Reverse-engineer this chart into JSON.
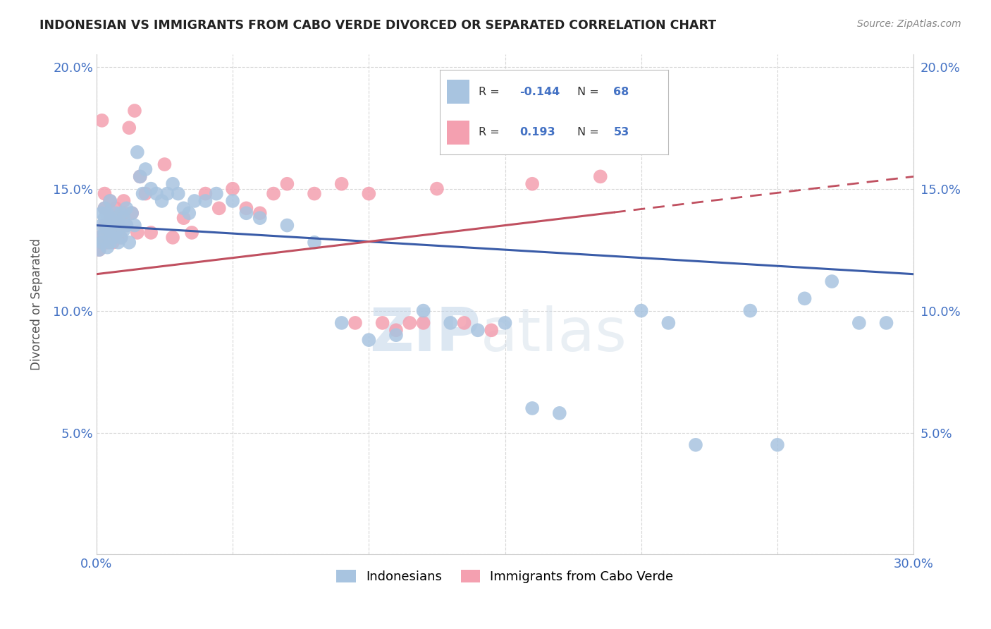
{
  "title": "INDONESIAN VS IMMIGRANTS FROM CABO VERDE DIVORCED OR SEPARATED CORRELATION CHART",
  "source": "Source: ZipAtlas.com",
  "ylabel": "Divorced or Separated",
  "legend_labels": [
    "Indonesians",
    "Immigrants from Cabo Verde"
  ],
  "xlim": [
    0.0,
    0.3
  ],
  "ylim": [
    0.0,
    0.205
  ],
  "xticks": [
    0.0,
    0.05,
    0.1,
    0.15,
    0.2,
    0.25,
    0.3
  ],
  "yticks": [
    0.0,
    0.05,
    0.1,
    0.15,
    0.2
  ],
  "xticklabels": [
    "0.0%",
    "",
    "",
    "",
    "",
    "",
    "30.0%"
  ],
  "yticklabels": [
    "",
    "5.0%",
    "10.0%",
    "15.0%",
    "20.0%"
  ],
  "blue_color": "#a8c4e0",
  "pink_color": "#f4a0b0",
  "blue_line_color": "#3a5ca8",
  "pink_line_color": "#c05060",
  "blue_r": "-0.144",
  "blue_n": "68",
  "pink_r": "0.193",
  "pink_n": "53",
  "watermark_zip": "ZIP",
  "watermark_atlas": "atlas",
  "blue_line_start_y": 0.135,
  "blue_line_end_y": 0.115,
  "pink_line_start_y": 0.115,
  "pink_line_end_y": 0.155,
  "indonesian_x": [
    0.001,
    0.001,
    0.002,
    0.002,
    0.002,
    0.003,
    0.003,
    0.003,
    0.004,
    0.004,
    0.004,
    0.005,
    0.005,
    0.005,
    0.005,
    0.006,
    0.006,
    0.007,
    0.007,
    0.008,
    0.008,
    0.009,
    0.009,
    0.01,
    0.01,
    0.011,
    0.011,
    0.012,
    0.013,
    0.014,
    0.015,
    0.016,
    0.017,
    0.018,
    0.02,
    0.022,
    0.024,
    0.026,
    0.028,
    0.03,
    0.032,
    0.034,
    0.036,
    0.04,
    0.044,
    0.05,
    0.055,
    0.06,
    0.07,
    0.08,
    0.09,
    0.1,
    0.11,
    0.12,
    0.13,
    0.14,
    0.15,
    0.16,
    0.17,
    0.2,
    0.21,
    0.22,
    0.24,
    0.25,
    0.26,
    0.27,
    0.28,
    0.29
  ],
  "indonesian_y": [
    0.125,
    0.13,
    0.128,
    0.135,
    0.14,
    0.132,
    0.138,
    0.142,
    0.126,
    0.134,
    0.14,
    0.128,
    0.133,
    0.138,
    0.145,
    0.13,
    0.136,
    0.132,
    0.14,
    0.128,
    0.136,
    0.13,
    0.14,
    0.133,
    0.138,
    0.142,
    0.135,
    0.128,
    0.14,
    0.135,
    0.165,
    0.155,
    0.148,
    0.158,
    0.15,
    0.148,
    0.145,
    0.148,
    0.152,
    0.148,
    0.142,
    0.14,
    0.145,
    0.145,
    0.148,
    0.145,
    0.14,
    0.138,
    0.135,
    0.128,
    0.095,
    0.088,
    0.09,
    0.1,
    0.095,
    0.092,
    0.095,
    0.06,
    0.058,
    0.1,
    0.095,
    0.045,
    0.1,
    0.045,
    0.105,
    0.112,
    0.095,
    0.095
  ],
  "caboverde_x": [
    0.001,
    0.001,
    0.002,
    0.002,
    0.003,
    0.003,
    0.003,
    0.004,
    0.004,
    0.005,
    0.005,
    0.005,
    0.006,
    0.006,
    0.007,
    0.007,
    0.008,
    0.008,
    0.009,
    0.01,
    0.01,
    0.011,
    0.012,
    0.013,
    0.014,
    0.015,
    0.016,
    0.018,
    0.02,
    0.025,
    0.028,
    0.032,
    0.035,
    0.04,
    0.045,
    0.05,
    0.055,
    0.06,
    0.065,
    0.07,
    0.08,
    0.09,
    0.095,
    0.1,
    0.105,
    0.11,
    0.115,
    0.12,
    0.125,
    0.135,
    0.145,
    0.16,
    0.185
  ],
  "caboverde_y": [
    0.125,
    0.13,
    0.128,
    0.178,
    0.135,
    0.142,
    0.148,
    0.128,
    0.133,
    0.13,
    0.138,
    0.145,
    0.128,
    0.133,
    0.138,
    0.142,
    0.132,
    0.138,
    0.13,
    0.14,
    0.145,
    0.135,
    0.175,
    0.14,
    0.182,
    0.132,
    0.155,
    0.148,
    0.132,
    0.16,
    0.13,
    0.138,
    0.132,
    0.148,
    0.142,
    0.15,
    0.142,
    0.14,
    0.148,
    0.152,
    0.148,
    0.152,
    0.095,
    0.148,
    0.095,
    0.092,
    0.095,
    0.095,
    0.15,
    0.095,
    0.092,
    0.152,
    0.155
  ]
}
